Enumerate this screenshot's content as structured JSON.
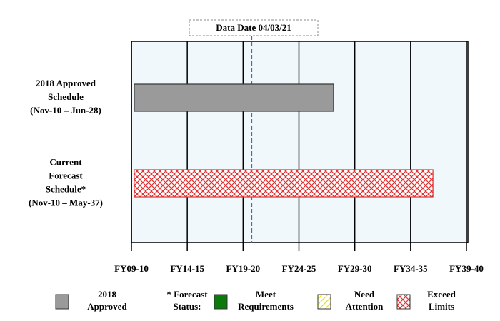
{
  "chart_data": {
    "type": "gantt",
    "data_date": {
      "label": "Data Date  04/03/21",
      "value": 2020.77
    },
    "bars": [
      {
        "lines": [
          "2018 Approved",
          "Schedule",
          "(Nov-10 – Jun-28)"
        ],
        "start": 2010.25,
        "end": 2028.1,
        "color": "#9a9a9a"
      },
      {
        "lines": [
          "Current",
          "Forecast",
          "Schedule*",
          "(Nov-10 – May-37)"
        ],
        "start": 2010.25,
        "end": 2037.0,
        "color": "#e03030",
        "pattern": "crosshatch"
      }
    ],
    "xlim": [
      2010,
      2040
    ],
    "xticks": [
      {
        "value": 2010,
        "label": "FY09-10"
      },
      {
        "value": 2015,
        "label": "FY14-15"
      },
      {
        "value": 2020,
        "label": "FY19-20"
      },
      {
        "value": 2025,
        "label": "FY24-25"
      },
      {
        "value": 2030,
        "label": "FY29-30"
      },
      {
        "value": 2035,
        "label": "FY34-35"
      },
      {
        "value": 2040,
        "label": "FY39-40"
      }
    ],
    "grid": true,
    "legend": [
      {
        "lines": [
          "2018",
          "Approved"
        ],
        "color": "#9a9a9a"
      },
      {
        "lines": [
          "* Forecast",
          "Status:"
        ]
      },
      {
        "lines": [
          "Meet",
          "Requirements"
        ],
        "color": "#0a7a0a"
      },
      {
        "lines": [
          "Need",
          "Attention"
        ],
        "color": "#f0e000",
        "pattern": "hatch"
      },
      {
        "lines": [
          "Exceed",
          "Limits"
        ],
        "color": "#e03030",
        "pattern": "crosshatch"
      }
    ]
  }
}
